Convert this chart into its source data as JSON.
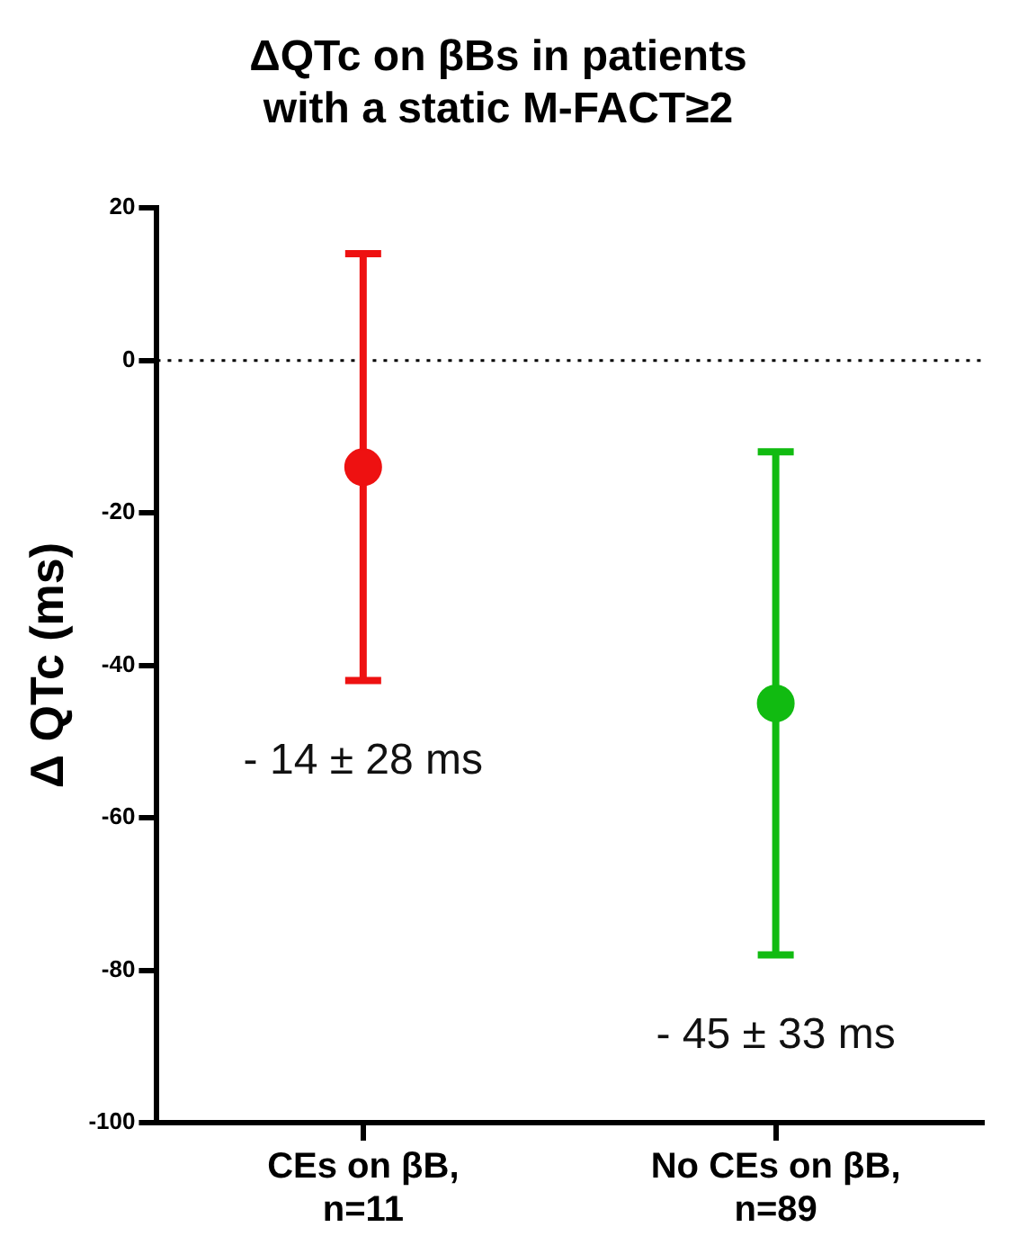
{
  "chart_data": {
    "type": "scatter",
    "title": "ΔQTc on βBs in patients with a static M-FACT≥2",
    "ylabel": "Δ QTc (ms)",
    "categories": [
      "CEs on βB, n=11",
      "No CEs on βB, n=89"
    ],
    "values": [
      -14,
      -45
    ],
    "colors": [
      "#ee1111",
      "#11bb11"
    ],
    "errors": [
      28,
      33
    ],
    "ylim": [
      -100,
      20
    ],
    "yticks": [
      -100,
      -80,
      -60,
      -40,
      -20,
      0,
      20
    ],
    "ref_lines": [
      {
        "axis": "y",
        "value": 0,
        "line_style": "dotted",
        "color": "#000000"
      }
    ],
    "annotations": [
      "- 14 ± 28 ms",
      "- 45 ± 33 ms"
    ],
    "grid": false,
    "legend": false,
    "marker": "circle"
  }
}
